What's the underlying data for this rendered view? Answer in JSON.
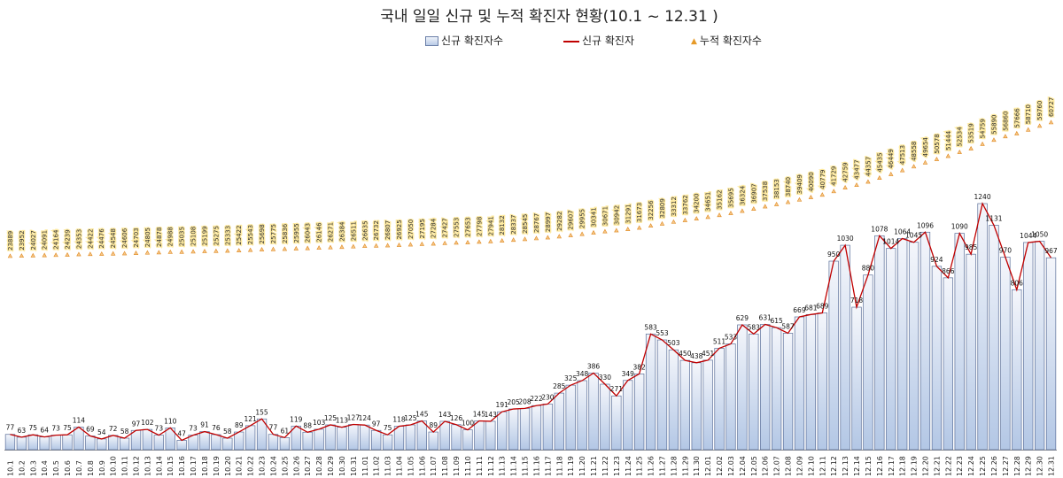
{
  "chart_data": {
    "type": "bar",
    "title": "국내 일일 신규 및 누적 확진자 현황(10.1 ~ 12.31 )",
    "legend": [
      "신규 확진자수",
      "신규 확진자",
      "누적 확진자수"
    ],
    "legend_position": "top",
    "categories": [
      "10.1",
      "10.2",
      "10.3",
      "10.4",
      "10.5",
      "10.6",
      "10.7",
      "10.8",
      "10.9",
      "10.10",
      "10.11",
      "10.12",
      "10.13",
      "10.14",
      "10.15",
      "10.16",
      "10.17",
      "10.18",
      "10.19",
      "10.20",
      "10.21",
      "10.22",
      "10.23",
      "10.24",
      "10.25",
      "10.26",
      "10.27",
      "10.28",
      "10.29",
      "10.30",
      "10.31",
      "11.01",
      "11.02",
      "11.03",
      "11.04",
      "11.05",
      "11.06",
      "11.07",
      "11.08",
      "11.09",
      "11.10",
      "11.11",
      "11.12",
      "11.13",
      "11.14",
      "11.15",
      "11.16",
      "11.17",
      "11.18",
      "11.19",
      "11.20",
      "11.21",
      "11.22",
      "11.23",
      "11.24",
      "11.25",
      "11.26",
      "11.27",
      "11.28",
      "11.29",
      "11.30",
      "12.01",
      "12.02",
      "12.03",
      "12.04",
      "12.05",
      "12.06",
      "12.07",
      "12.08",
      "12.09",
      "12.10",
      "12.11",
      "12.12",
      "12.13",
      "12.14",
      "12.15",
      "12.16",
      "12.17",
      "12.18",
      "12.19",
      "12.20",
      "12.21",
      "12.22",
      "12.23",
      "12.24",
      "12.25",
      "12.26",
      "12.27",
      "12.28",
      "12.29",
      "12.30",
      "12.31"
    ],
    "series": [
      {
        "name": "신규 확진자수",
        "type": "bar",
        "values": [
          77,
          63,
          75,
          64,
          73,
          75,
          114,
          69,
          54,
          72,
          58,
          97,
          102,
          73,
          110,
          47,
          73,
          91,
          76,
          58,
          89,
          121,
          155,
          77,
          61,
          119,
          88,
          103,
          125,
          113,
          127,
          124,
          97,
          75,
          118,
          125,
          145,
          89,
          143,
          126,
          100,
          145,
          143,
          191,
          205,
          208,
          222,
          230,
          285,
          325,
          348,
          386,
          330,
          271,
          349,
          382,
          583,
          553,
          503,
          450,
          438,
          451,
          511,
          533,
          629,
          583,
          631,
          615,
          587,
          669,
          681,
          689,
          950,
          1030,
          718,
          880,
          1078,
          1014,
          1064,
          1045,
          1096,
          924,
          866,
          1090,
          985,
          1240,
          1131,
          970,
          806,
          1044,
          1050,
          967
        ]
      },
      {
        "name": "신규 확진자",
        "type": "line",
        "values": [
          77,
          63,
          75,
          64,
          73,
          75,
          114,
          69,
          54,
          72,
          58,
          97,
          102,
          73,
          110,
          47,
          73,
          91,
          76,
          58,
          89,
          121,
          155,
          77,
          61,
          119,
          88,
          103,
          125,
          113,
          127,
          124,
          97,
          75,
          118,
          125,
          145,
          89,
          143,
          126,
          100,
          145,
          143,
          191,
          205,
          208,
          222,
          230,
          285,
          325,
          348,
          386,
          330,
          271,
          349,
          382,
          583,
          553,
          503,
          450,
          438,
          451,
          511,
          533,
          629,
          583,
          631,
          615,
          587,
          669,
          681,
          689,
          950,
          1030,
          718,
          880,
          1078,
          1014,
          1064,
          1045,
          1096,
          924,
          866,
          1090,
          985,
          1240,
          1131,
          970,
          806,
          1044,
          1050,
          967
        ]
      },
      {
        "name": "누적 확진자수",
        "type": "scatter",
        "values": [
          23889,
          23952,
          24027,
          24091,
          24164,
          24239,
          24353,
          24422,
          24476,
          24548,
          24606,
          24703,
          24805,
          24878,
          24988,
          25035,
          25108,
          25199,
          25275,
          25333,
          25422,
          25543,
          25698,
          25775,
          25836,
          25955,
          26043,
          26146,
          26271,
          26384,
          26511,
          26635,
          26732,
          26807,
          26925,
          27050,
          27195,
          27284,
          27427,
          27553,
          27653,
          27798,
          27941,
          28132,
          28337,
          28545,
          28767,
          28997,
          29282,
          29607,
          29955,
          30341,
          30671,
          30942,
          31291,
          31673,
          32256,
          32809,
          33312,
          33762,
          34200,
          34651,
          35162,
          35695,
          36324,
          36907,
          37538,
          38153,
          38740,
          39409,
          40090,
          40779,
          41729,
          42759,
          43477,
          44357,
          45435,
          46449,
          47513,
          48558,
          49654,
          50578,
          51444,
          52534,
          53519,
          54759,
          55890,
          56860,
          57666,
          58710,
          59760,
          60727
        ]
      }
    ],
    "ylim": [
      0,
      1300
    ],
    "ylim_cumulative": [
      0,
      70000
    ],
    "grid": false
  }
}
